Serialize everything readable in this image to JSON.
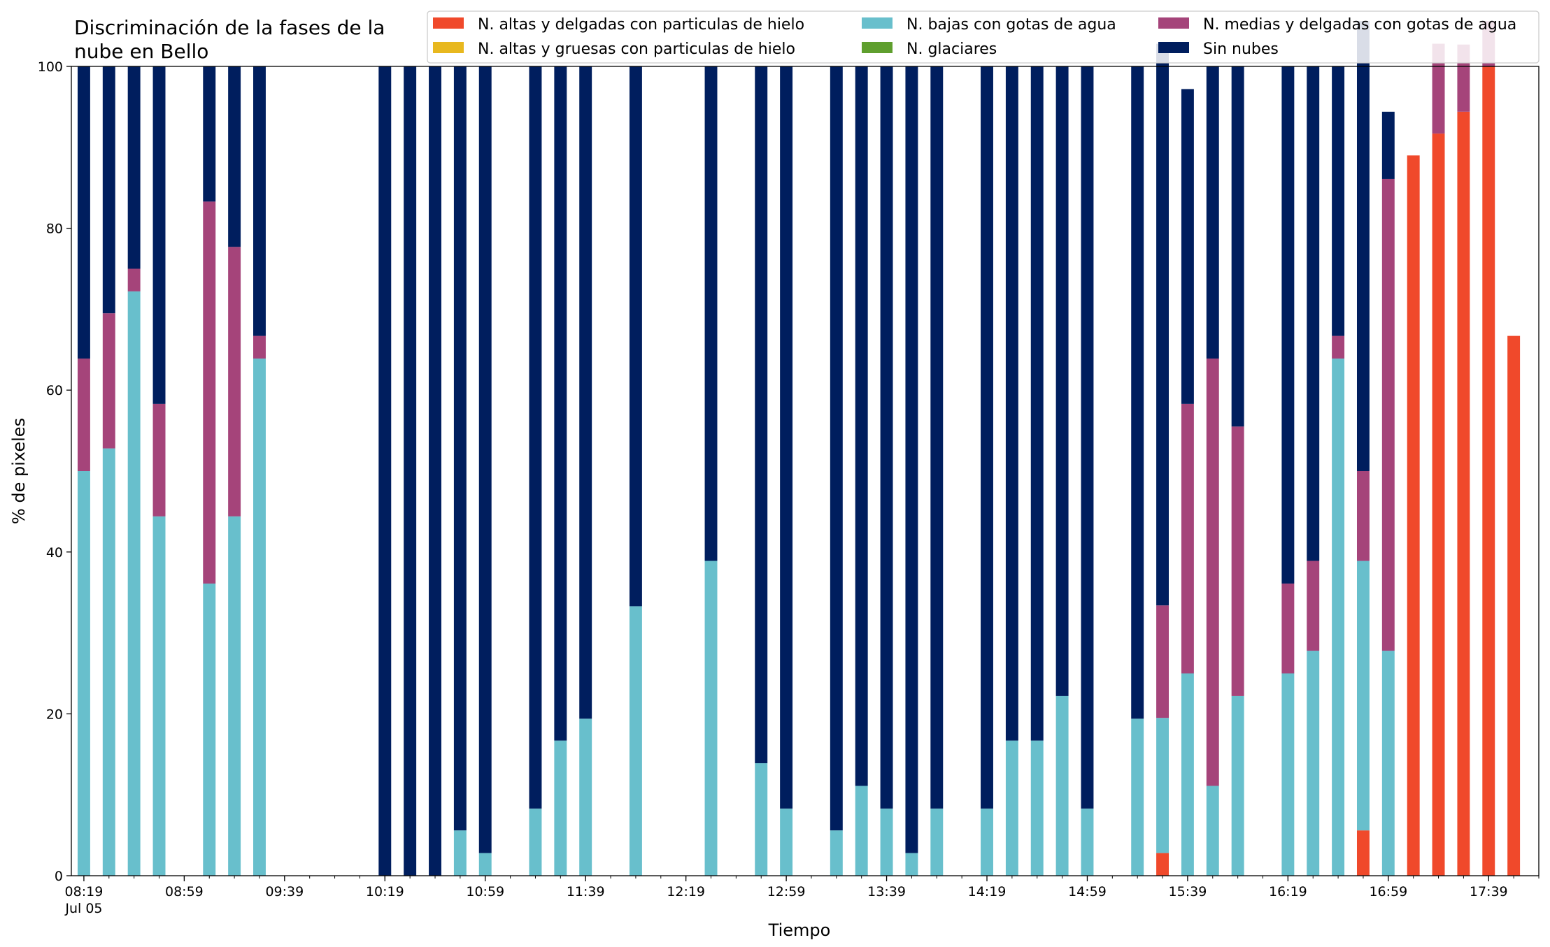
{
  "chart_data": {
    "type": "bar",
    "stacked": true,
    "title": "Discriminación de la fases de la nube en Bello",
    "title_lines": [
      "Discriminación de la fases de la",
      "nube en Bello"
    ],
    "xlabel": "Tiempo",
    "ylabel": "% de pixeles",
    "ylim": [
      0,
      100
    ],
    "xlim": [
      "08:14",
      "17:59"
    ],
    "yticks": [
      0,
      20,
      40,
      60,
      80,
      100
    ],
    "xticks": [
      "08:19",
      "08:59",
      "09:39",
      "10:19",
      "10:59",
      "11:39",
      "12:19",
      "12:59",
      "13:39",
      "14:19",
      "14:59",
      "15:39",
      "16:19",
      "16:59",
      "17:39"
    ],
    "xtick_sublabel": "Jul 05",
    "minor_tick_interval_min": 10,
    "bar_width_min": 5,
    "grid": false,
    "legend_placement": "top-right",
    "legend_columns": 3,
    "times": [
      "08:19",
      "08:29",
      "08:39",
      "08:49",
      "08:59",
      "09:09",
      "09:19",
      "09:29",
      "09:39",
      "09:49",
      "09:59",
      "10:09",
      "10:19",
      "10:29",
      "10:39",
      "10:49",
      "10:59",
      "11:09",
      "11:19",
      "11:29",
      "11:39",
      "11:49",
      "11:59",
      "12:09",
      "12:19",
      "12:29",
      "12:39",
      "12:49",
      "12:59",
      "13:09",
      "13:19",
      "13:29",
      "13:39",
      "13:49",
      "13:59",
      "14:09",
      "14:19",
      "14:29",
      "14:39",
      "14:49",
      "14:59",
      "15:09",
      "15:19",
      "15:29",
      "15:39",
      "15:49",
      "15:59",
      "16:09",
      "16:19",
      "16:29",
      "16:39",
      "16:49",
      "16:59",
      "17:09",
      "17:19",
      "17:29",
      "17:39",
      "17:49"
    ],
    "series": [
      {
        "name": "N. altas y delgadas con particulas de hielo",
        "color": "#f0492b",
        "values": [
          0,
          0,
          0,
          0,
          null,
          0,
          0,
          0,
          null,
          null,
          null,
          null,
          0,
          0,
          0,
          0,
          null,
          0,
          0,
          0,
          null,
          0,
          null,
          null,
          null,
          null,
          0,
          0,
          null,
          0,
          0,
          0,
          0,
          0,
          0,
          null,
          0,
          0,
          0,
          0,
          null,
          0,
          0,
          2.8,
          0,
          0,
          null,
          0,
          0,
          0,
          0,
          5.6,
          null,
          89,
          91.7,
          94.4,
          100,
          66.7
        ]
      },
      {
        "name": "N. altas y gruesas con particulas de hielo",
        "color": "#e8b81f",
        "values": [
          0,
          0,
          0,
          0,
          null,
          0,
          0,
          0,
          null,
          null,
          null,
          null,
          0,
          0,
          0,
          0,
          null,
          0,
          0,
          0,
          null,
          0,
          null,
          null,
          null,
          null,
          0,
          0,
          null,
          0,
          0,
          0,
          0,
          0,
          0,
          null,
          0,
          0,
          0,
          0,
          null,
          0,
          0,
          0,
          0,
          0,
          null,
          0,
          0,
          0,
          0,
          0,
          null,
          0,
          0,
          0,
          0,
          0
        ]
      },
      {
        "name": "N. bajas con gotas de agua",
        "color": "#68bfcc",
        "values": [
          50,
          52.8,
          72.2,
          44.4,
          null,
          36.1,
          44.4,
          63.9,
          null,
          null,
          null,
          null,
          0,
          0,
          0,
          5.6,
          2.8,
          null,
          8.3,
          16.7,
          19.4,
          null,
          33.3,
          null,
          null,
          38.9,
          null,
          13.9,
          8.3,
          null,
          5.6,
          11.1,
          8.3,
          2.8,
          8.3,
          null,
          8.3,
          16.7,
          16.7,
          22.2,
          8.3,
          null,
          19.4,
          16.7,
          25,
          11.1,
          22.2,
          null,
          25,
          27.8,
          63.9,
          33.3,
          27.8,
          null,
          0,
          0,
          0,
          0
        ]
      },
      {
        "name": "N. glaciares",
        "color": "#5f9f2e",
        "values": [
          0,
          0,
          0,
          0,
          null,
          0,
          0,
          0,
          null,
          null,
          null,
          null,
          0,
          0,
          0,
          0,
          0,
          null,
          0,
          0,
          0,
          null,
          0,
          null,
          null,
          0,
          null,
          0,
          0,
          null,
          0,
          0,
          0,
          0,
          0,
          null,
          0,
          0,
          0,
          0,
          0,
          null,
          0,
          0,
          0,
          0,
          0,
          null,
          0,
          0,
          0,
          0,
          0,
          null,
          0,
          0,
          0,
          0
        ]
      },
      {
        "name": "N. medias y delgadas con gotas de agua",
        "color": "#a5447a",
        "values": [
          13.9,
          16.7,
          2.8,
          13.9,
          null,
          47.2,
          33.3,
          2.8,
          null,
          null,
          null,
          null,
          0,
          0,
          0,
          0,
          0,
          null,
          0,
          0,
          0,
          null,
          0,
          null,
          null,
          0,
          null,
          0,
          0,
          null,
          0,
          0,
          0,
          0,
          0,
          null,
          0,
          0,
          0,
          0,
          0,
          null,
          0,
          13.9,
          33.3,
          52.8,
          33.3,
          null,
          11.1,
          11.1,
          2.8,
          11.1,
          58.3,
          null,
          11.1,
          8.3,
          5.6,
          0
        ]
      },
      {
        "name": "Sin nubes",
        "color": "#001e5e",
        "values": [
          36.1,
          30.5,
          25,
          41.7,
          null,
          16.7,
          22.3,
          33.3,
          null,
          null,
          null,
          null,
          100,
          100,
          100,
          94.4,
          97.2,
          null,
          91.7,
          83.3,
          80.6,
          null,
          66.7,
          null,
          null,
          61.1,
          null,
          86.1,
          91.7,
          null,
          94.4,
          88.9,
          91.7,
          97.2,
          91.7,
          null,
          91.7,
          83.3,
          83.3,
          77.8,
          91.7,
          null,
          80.6,
          69.4,
          38.9,
          36.1,
          44.5,
          null,
          63.9,
          61.1,
          33.3,
          55.6,
          8.3,
          null,
          0,
          0,
          0,
          0
        ]
      }
    ]
  }
}
